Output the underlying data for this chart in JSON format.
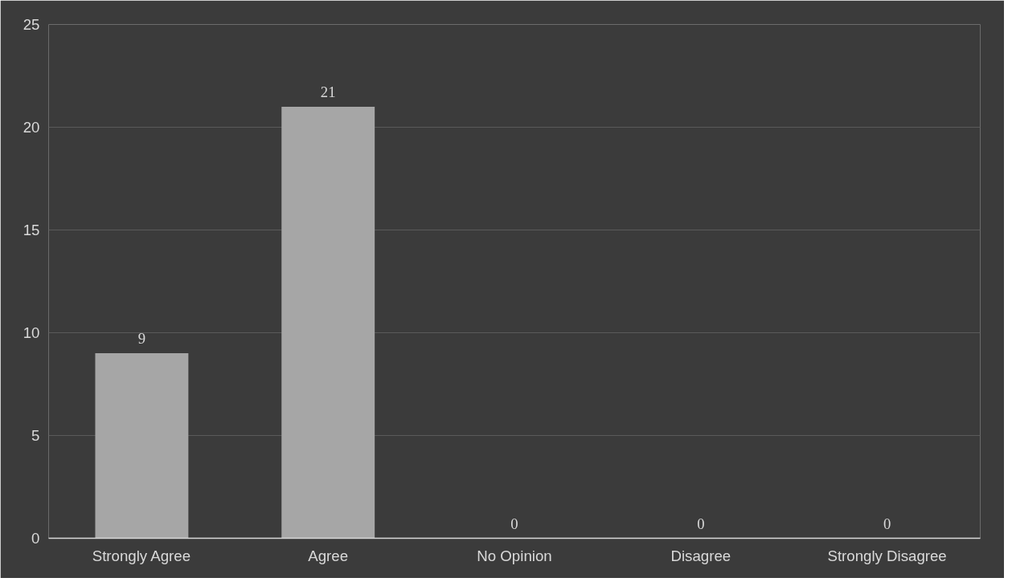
{
  "chart_data": {
    "type": "bar",
    "categories": [
      "Strongly Agree",
      "Agree",
      "No Opinion",
      "Disagree",
      "Strongly Disagree"
    ],
    "values": [
      9,
      21,
      0,
      0,
      0
    ],
    "color": "#a6a6a6",
    "ylim": [
      0,
      25
    ],
    "yticks": [
      0,
      5,
      10,
      15,
      20,
      25
    ],
    "grid": "y",
    "data_labels": true
  }
}
